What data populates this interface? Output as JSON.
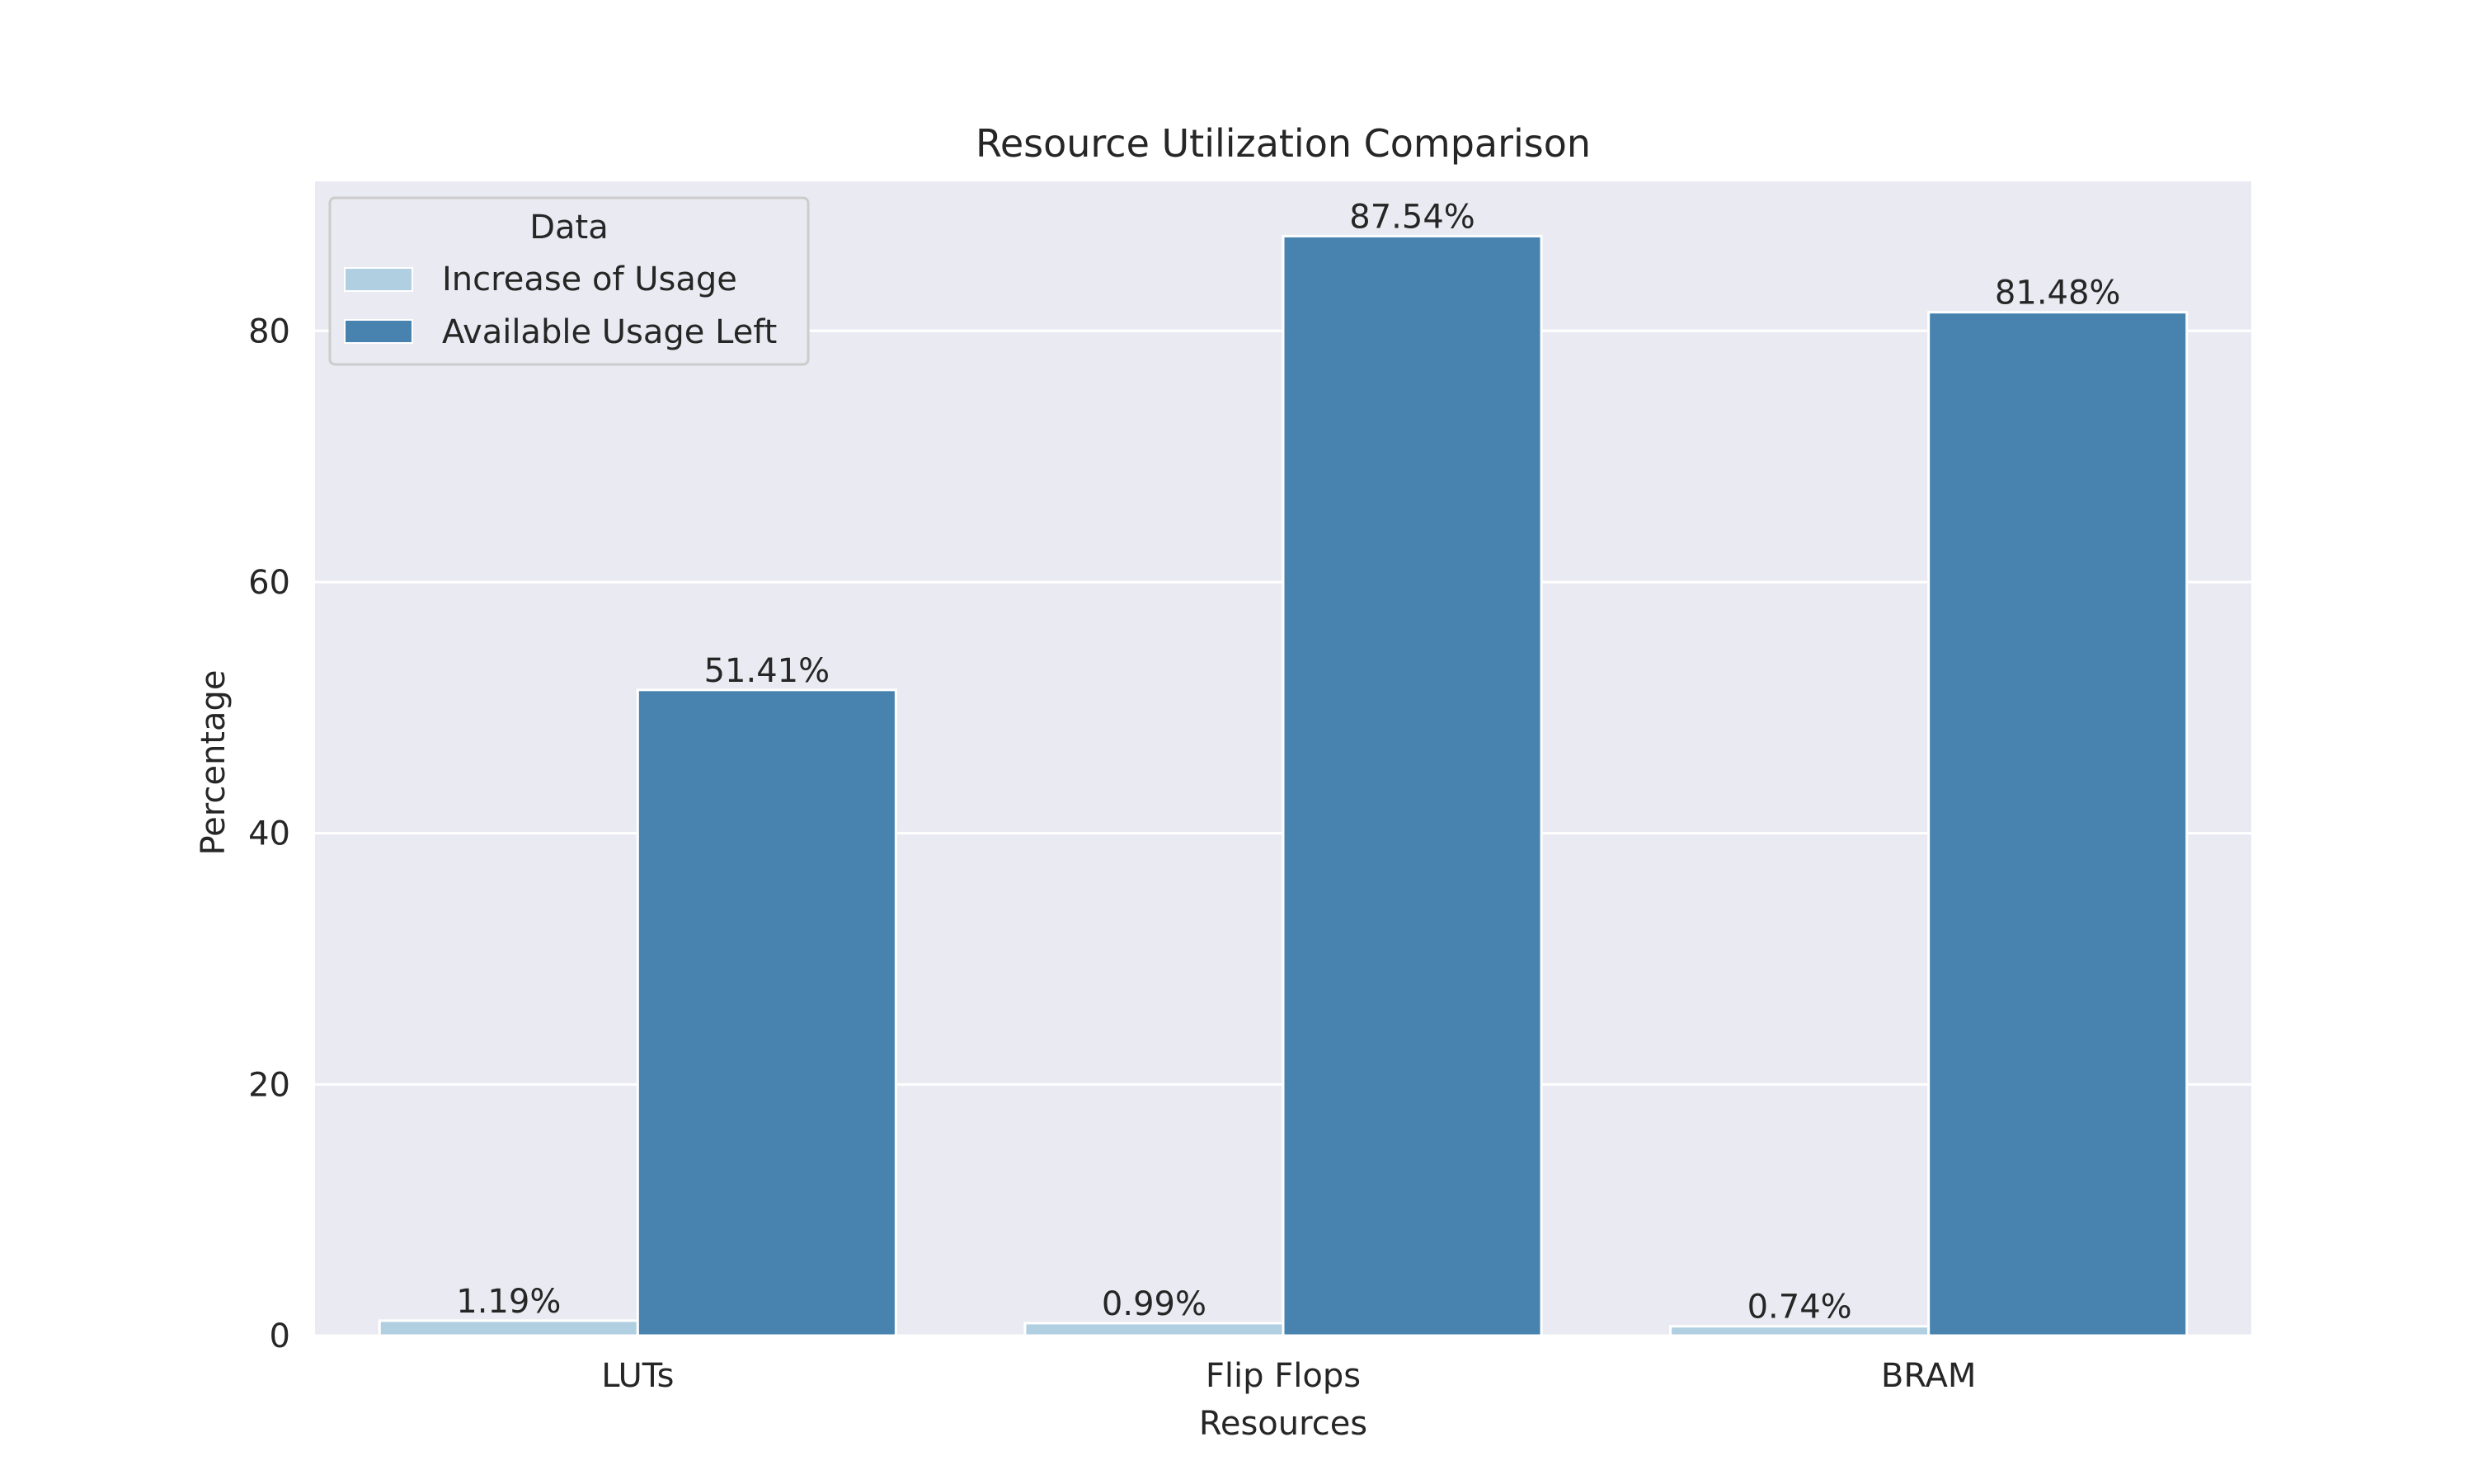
{
  "chart_data": {
    "type": "bar",
    "title": "Resource Utilization Comparison",
    "xlabel": "Resources",
    "ylabel": "Percentage",
    "categories": [
      "LUTs",
      "Flip Flops",
      "BRAM"
    ],
    "series": [
      {
        "name": "Increase of Usage",
        "values": [
          1.19,
          0.99,
          0.74
        ],
        "labels": [
          "1.19%",
          "0.99%",
          "0.74%"
        ],
        "color": "#b0cfe1"
      },
      {
        "name": "Available Usage Left",
        "values": [
          51.41,
          87.54,
          81.48
        ],
        "labels": [
          "51.41%",
          "87.54%",
          "81.48%"
        ],
        "color": "#4883b0"
      }
    ],
    "ylim": [
      0,
      91.9
    ],
    "yticks": [
      0,
      20,
      40,
      60,
      80
    ],
    "grid": true,
    "legend": {
      "title": "Data",
      "position": "top-left"
    },
    "background_color": "#eaeaf2",
    "grid_color": "#ffffff"
  }
}
